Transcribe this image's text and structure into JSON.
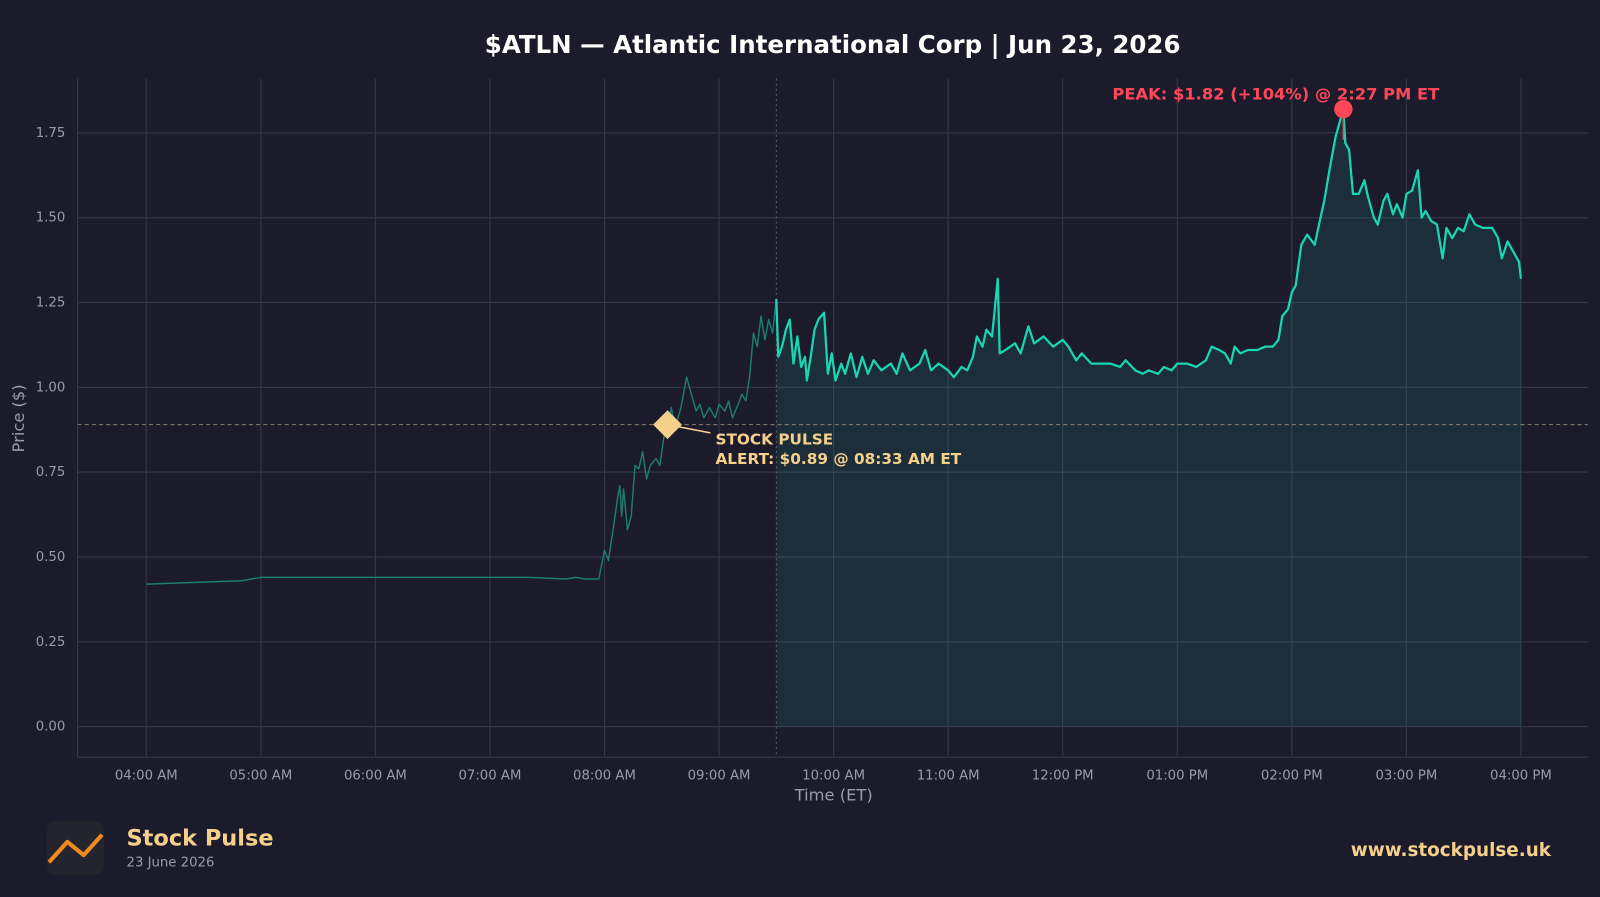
{
  "chart_data": {
    "type": "line",
    "title": "$ATLN — Atlantic International Corp  |  Jun 23, 2026",
    "x_label": "Time (ET)",
    "y_label": "Price ($)",
    "xlim": [
      "03:24",
      "16:35"
    ],
    "ylim": [
      -0.09,
      1.91
    ],
    "xticks": [
      {
        "value": "04:00",
        "label": "04:00 AM"
      },
      {
        "value": "05:00",
        "label": "05:00 AM"
      },
      {
        "value": "06:00",
        "label": "06:00 AM"
      },
      {
        "value": "07:00",
        "label": "07:00 AM"
      },
      {
        "value": "08:00",
        "label": "08:00 AM"
      },
      {
        "value": "09:00",
        "label": "09:00 AM"
      },
      {
        "value": "10:00",
        "label": "10:00 AM"
      },
      {
        "value": "11:00",
        "label": "11:00 AM"
      },
      {
        "value": "12:00",
        "label": "12:00 PM"
      },
      {
        "value": "13:00",
        "label": "01:00 PM"
      },
      {
        "value": "14:00",
        "label": "02:00 PM"
      },
      {
        "value": "15:00",
        "label": "03:00 PM"
      },
      {
        "value": "16:00",
        "label": "04:00 PM"
      }
    ],
    "yticks": [
      {
        "value": 0,
        "label": "0.00"
      },
      {
        "value": 0.25,
        "label": "0.25"
      },
      {
        "value": 0.5,
        "label": "0.50"
      },
      {
        "value": 0.75,
        "label": "0.75"
      },
      {
        "value": 1,
        "label": "1.00"
      },
      {
        "value": 1.25,
        "label": "1.25"
      },
      {
        "value": 1.5,
        "label": "1.50"
      },
      {
        "value": 1.75,
        "label": "1.75"
      }
    ],
    "grid": true,
    "market_open": "09:30",
    "series": [
      {
        "color": "#1d7d70",
        "fill": false,
        "x": [
          "04:00",
          "04:50",
          "05:00",
          "06:00",
          "07:00",
          "07:20",
          "07:40",
          "07:45",
          "07:50",
          "07:57",
          "08:00",
          "08:02",
          "08:05",
          "08:07",
          "08:08",
          "08:09",
          "08:10",
          "08:12",
          "08:14",
          "08:16",
          "08:18",
          "08:20",
          "08:22",
          "08:24",
          "08:27",
          "08:29",
          "08:31",
          "08:33",
          "08:35",
          "08:37",
          "08:40",
          "08:42",
          "08:43",
          "08:45",
          "08:48",
          "08:50",
          "08:52",
          "08:55",
          "08:58",
          "09:00",
          "09:03",
          "09:05",
          "09:07",
          "09:10",
          "09:12",
          "09:14",
          "09:16",
          "09:18",
          "09:20",
          "09:22",
          "09:24",
          "09:26",
          "09:28",
          "09:30"
        ],
        "values": [
          0.42,
          0.43,
          0.44,
          0.44,
          0.44,
          0.44,
          0.435,
          0.44,
          0.435,
          0.435,
          0.52,
          0.49,
          0.6,
          0.68,
          0.71,
          0.62,
          0.7,
          0.58,
          0.62,
          0.77,
          0.76,
          0.81,
          0.73,
          0.77,
          0.79,
          0.77,
          0.85,
          0.89,
          0.94,
          0.88,
          0.94,
          1.0,
          1.03,
          0.99,
          0.93,
          0.95,
          0.91,
          0.94,
          0.91,
          0.95,
          0.93,
          0.96,
          0.91,
          0.95,
          0.98,
          0.96,
          1.03,
          1.16,
          1.12,
          1.21,
          1.14,
          1.2,
          1.16,
          1.26
        ]
      },
      {
        "color": "#19d6b2",
        "fill": true,
        "x": [
          "09:30",
          "09:31",
          "09:33",
          "09:35",
          "09:37",
          "09:39",
          "09:41",
          "09:43",
          "09:45",
          "09:46",
          "09:48",
          "09:50",
          "09:52",
          "09:55",
          "09:57",
          "09:59",
          "10:01",
          "10:04",
          "10:06",
          "10:09",
          "10:12",
          "10:15",
          "10:18",
          "10:21",
          "10:25",
          "10:30",
          "10:33",
          "10:36",
          "10:40",
          "10:45",
          "10:48",
          "10:51",
          "10:55",
          "11:00",
          "11:03",
          "11:07",
          "11:10",
          "11:13",
          "11:15",
          "11:18",
          "11:20",
          "11:23",
          "11:26",
          "11:27",
          "11:30",
          "11:35",
          "11:38",
          "11:42",
          "11:45",
          "11:50",
          "11:55",
          "12:00",
          "12:03",
          "12:07",
          "12:10",
          "12:15",
          "12:20",
          "12:25",
          "12:30",
          "12:33",
          "12:38",
          "12:42",
          "12:45",
          "12:50",
          "12:53",
          "12:57",
          "13:00",
          "13:05",
          "13:10",
          "13:15",
          "13:18",
          "13:22",
          "13:25",
          "13:28",
          "13:30",
          "13:33",
          "13:37",
          "13:42",
          "13:46",
          "13:50",
          "13:53",
          "13:55",
          "13:58",
          "14:00",
          "14:02",
          "14:05",
          "14:08",
          "14:12",
          "14:15",
          "14:17",
          "14:20",
          "14:23",
          "14:27",
          "14:28",
          "14:30",
          "14:32",
          "14:35",
          "14:38",
          "14:40",
          "14:43",
          "14:45",
          "14:48",
          "14:50",
          "14:53",
          "14:55",
          "14:58",
          "15:00",
          "15:03",
          "15:06",
          "15:08",
          "15:10",
          "15:13",
          "15:16",
          "15:19",
          "15:21",
          "15:24",
          "15:27",
          "15:30",
          "15:33",
          "15:36",
          "15:40",
          "15:45",
          "15:48",
          "15:50",
          "15:53",
          "15:56",
          "15:59",
          "16:00"
        ],
        "values": [
          1.26,
          1.09,
          1.12,
          1.17,
          1.2,
          1.07,
          1.15,
          1.06,
          1.09,
          1.02,
          1.09,
          1.17,
          1.2,
          1.22,
          1.04,
          1.1,
          1.02,
          1.07,
          1.04,
          1.1,
          1.03,
          1.09,
          1.04,
          1.08,
          1.05,
          1.07,
          1.04,
          1.1,
          1.05,
          1.07,
          1.11,
          1.05,
          1.07,
          1.05,
          1.03,
          1.06,
          1.05,
          1.09,
          1.15,
          1.12,
          1.17,
          1.15,
          1.32,
          1.1,
          1.11,
          1.13,
          1.1,
          1.18,
          1.13,
          1.15,
          1.12,
          1.14,
          1.12,
          1.08,
          1.1,
          1.07,
          1.07,
          1.07,
          1.06,
          1.08,
          1.05,
          1.04,
          1.05,
          1.04,
          1.06,
          1.05,
          1.07,
          1.07,
          1.06,
          1.08,
          1.12,
          1.11,
          1.1,
          1.07,
          1.12,
          1.1,
          1.11,
          1.11,
          1.12,
          1.12,
          1.14,
          1.21,
          1.23,
          1.28,
          1.3,
          1.42,
          1.45,
          1.42,
          1.5,
          1.55,
          1.65,
          1.74,
          1.82,
          1.72,
          1.7,
          1.57,
          1.57,
          1.61,
          1.56,
          1.5,
          1.48,
          1.55,
          1.57,
          1.51,
          1.54,
          1.5,
          1.57,
          1.58,
          1.64,
          1.5,
          1.52,
          1.49,
          1.48,
          1.38,
          1.47,
          1.44,
          1.47,
          1.46,
          1.51,
          1.48,
          1.47,
          1.47,
          1.44,
          1.38,
          1.43,
          1.4,
          1.37,
          1.32
        ]
      }
    ],
    "annotations": [
      {
        "kind": "alert",
        "text": [
          "STOCK PULSE",
          "ALERT: $0.89 @ 08:33 AM ET"
        ],
        "x": "08:33",
        "y": 0.89,
        "color": "#f5d08a"
      },
      {
        "kind": "peak",
        "text": [
          "PEAK: $1.82 (+104%) @ 2:27 PM ET"
        ],
        "x": "14:27",
        "y": 1.82,
        "color": "#ff4757"
      }
    ]
  },
  "footer": {
    "brand": "Stock Pulse",
    "date": "23 June 2026",
    "url": "www.stockpulse.uk"
  }
}
